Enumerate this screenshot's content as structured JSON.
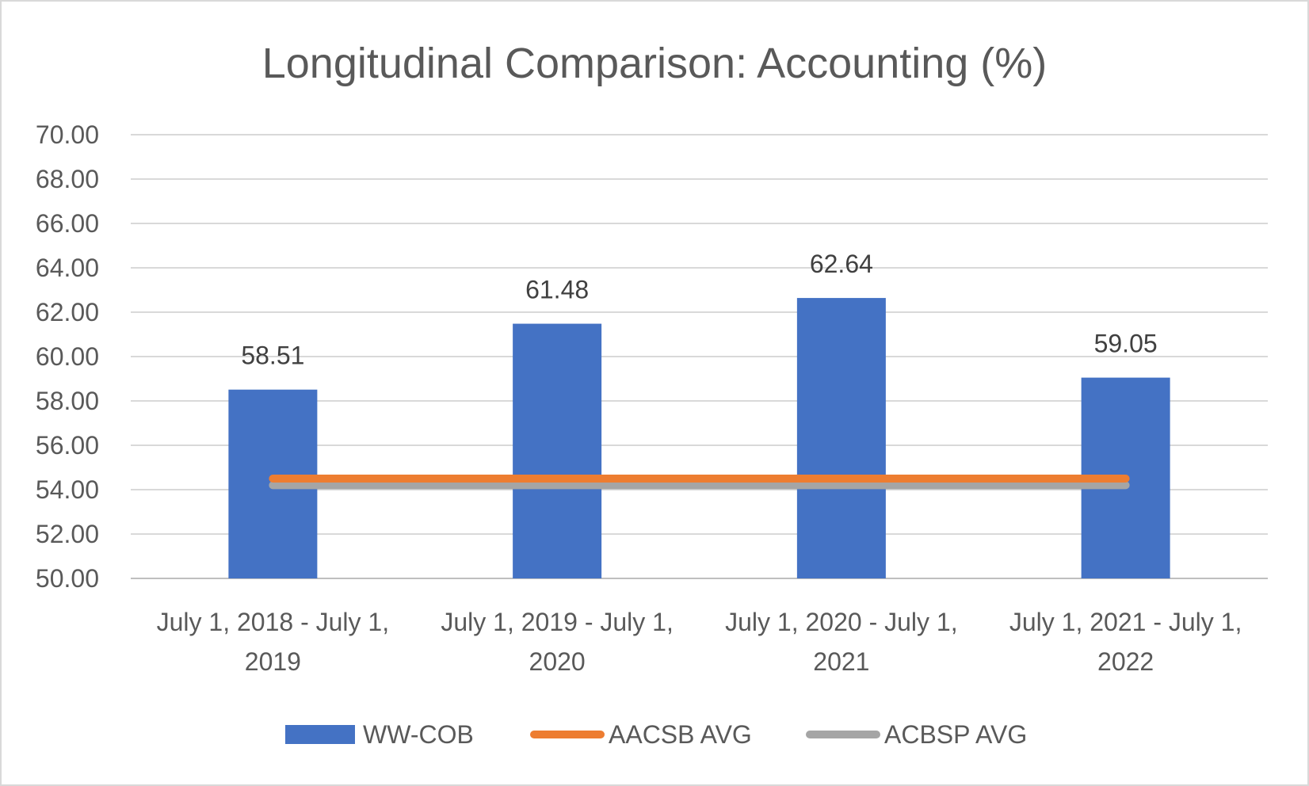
{
  "chart_data": {
    "type": "bar",
    "title": "Longitudinal Comparison: Accounting (%)",
    "categories": [
      [
        "July 1, 2018 - July 1,",
        "2019"
      ],
      [
        "July 1, 2019 - July 1,",
        "2020"
      ],
      [
        "July 1, 2020 - July 1,",
        "2021"
      ],
      [
        "July 1, 2021 - July 1,",
        "2022"
      ]
    ],
    "ylim": [
      50,
      70
    ],
    "yticks": [
      "50.00",
      "52.00",
      "54.00",
      "56.00",
      "58.00",
      "60.00",
      "62.00",
      "64.00",
      "66.00",
      "68.00",
      "70.00"
    ],
    "grid": true,
    "legend_position": "bottom",
    "series": [
      {
        "name": "WW-COB",
        "type": "bar",
        "color": "#4472c4",
        "values": [
          58.51,
          61.48,
          62.64,
          59.05
        ],
        "labels": [
          "58.51",
          "61.48",
          "62.64",
          "59.05"
        ]
      },
      {
        "name": "AACSB AVG",
        "type": "line",
        "color": "#ed7d31",
        "values": [
          54.5,
          54.5,
          54.5,
          54.5
        ]
      },
      {
        "name": "ACBSP AVG",
        "type": "line",
        "color": "#a5a5a5",
        "values": [
          54.2,
          54.2,
          54.2,
          54.2
        ]
      }
    ]
  }
}
